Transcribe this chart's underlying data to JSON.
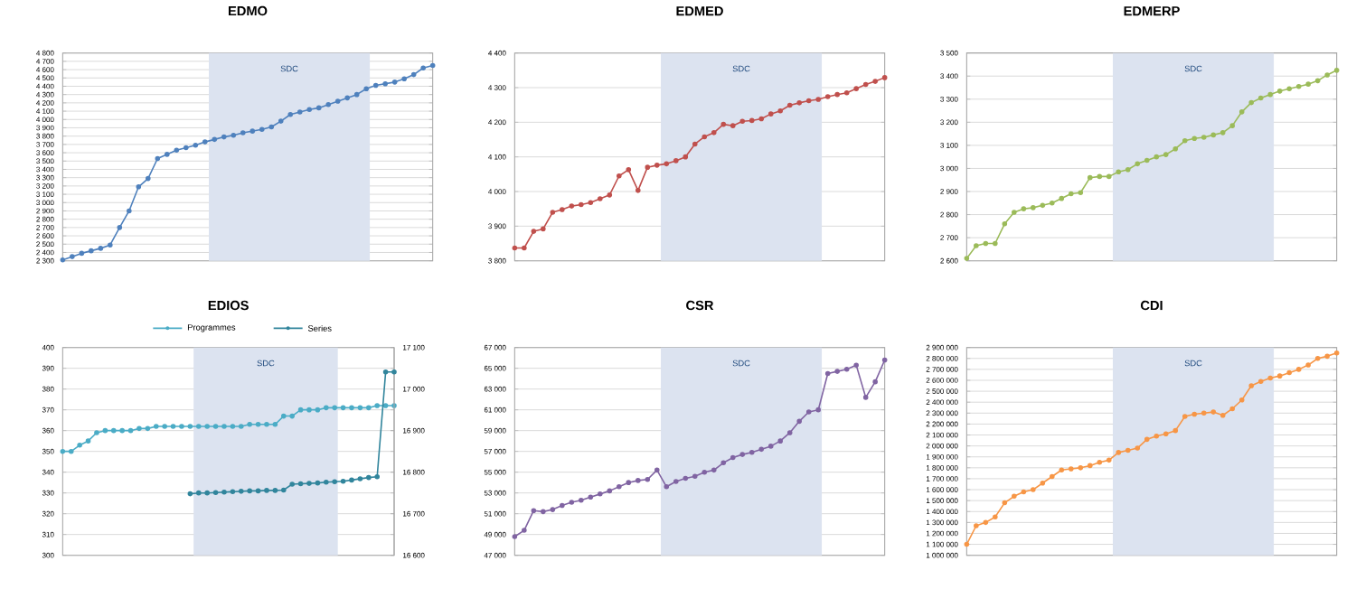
{
  "chart_data": [
    {
      "type": "line",
      "title": "EDMO",
      "marker": "circle",
      "grid": "y",
      "annotations": [
        "SDC"
      ],
      "categories": [
        null,
        null,
        null,
        null,
        null,
        null,
        null,
        null,
        null,
        null,
        null,
        null,
        null,
        null,
        null,
        null,
        null,
        null,
        null,
        null,
        null,
        null,
        null,
        null,
        null,
        null,
        null,
        null,
        null,
        null,
        null,
        null,
        null,
        null,
        null,
        null,
        null,
        null,
        null,
        null
      ],
      "series": [
        {
          "color": "#4f81bd",
          "values": [
            2310,
            2350,
            2390,
            2420,
            2450,
            2490,
            2700,
            2900,
            3190,
            3290,
            3530,
            3580,
            3630,
            3660,
            3690,
            3730,
            3760,
            3790,
            3810,
            3840,
            3860,
            3880,
            3910,
            3980,
            4060,
            4090,
            4120,
            4140,
            4180,
            4220,
            4260,
            4300,
            4370,
            4410,
            4430,
            4450,
            4490,
            4540,
            4620,
            4650
          ]
        }
      ],
      "ylim": [
        2300,
        4800
      ],
      "yticks": [
        {
          "value": 2300,
          "label": "2 300"
        },
        {
          "value": 2400,
          "label": "2 400"
        },
        {
          "value": 2500,
          "label": "2 500"
        },
        {
          "value": 2600,
          "label": "2 600"
        },
        {
          "value": 2700,
          "label": "2 700"
        },
        {
          "value": 2800,
          "label": "2 800"
        },
        {
          "value": 2900,
          "label": "2 900"
        },
        {
          "value": 3000,
          "label": "3 000"
        },
        {
          "value": 3100,
          "label": "3 100"
        },
        {
          "value": 3200,
          "label": "3 200"
        },
        {
          "value": 3300,
          "label": "3 300"
        },
        {
          "value": 3400,
          "label": "3 400"
        },
        {
          "value": 3500,
          "label": "3 500"
        },
        {
          "value": 3600,
          "label": "3 600"
        },
        {
          "value": 3700,
          "label": "3 700"
        },
        {
          "value": 3800,
          "label": "3 800"
        },
        {
          "value": 3900,
          "label": "3 900"
        },
        {
          "value": 4000,
          "label": "4 000"
        },
        {
          "value": 4100,
          "label": "4 100"
        },
        {
          "value": 4200,
          "label": "4 200"
        },
        {
          "value": 4300,
          "label": "4 300"
        },
        {
          "value": 4400,
          "label": "4 400"
        },
        {
          "value": 4500,
          "label": "4 500"
        },
        {
          "value": 4600,
          "label": "4 600"
        },
        {
          "value": 4700,
          "label": "4 700"
        },
        {
          "value": 4800,
          "label": "4 800"
        }
      ]
    },
    {
      "type": "line",
      "title": "EDMED",
      "marker": "circle",
      "grid": "y",
      "annotations": [
        "SDC"
      ],
      "categories": [
        null,
        null,
        null,
        null,
        null,
        null,
        null,
        null,
        null,
        null,
        null,
        null,
        null,
        null,
        null,
        null,
        null,
        null,
        null,
        null,
        null,
        null,
        null,
        null,
        null,
        null,
        null,
        null,
        null,
        null,
        null,
        null,
        null,
        null,
        null,
        null,
        null,
        null,
        null,
        null
      ],
      "series": [
        {
          "color": "#c0504d",
          "values": [
            3837,
            3837,
            3885,
            3892,
            3940,
            3948,
            3958,
            3962,
            3968,
            3979,
            3990,
            4045,
            4063,
            4003,
            4070,
            4076,
            4080,
            4089,
            4100,
            4137,
            4158,
            4170,
            4194,
            4190,
            4203,
            4205,
            4210,
            4224,
            4233,
            4249,
            4256,
            4262,
            4266,
            4274,
            4280,
            4285,
            4297,
            4309,
            4318,
            4329
          ]
        }
      ],
      "ylim": [
        3800,
        4400
      ],
      "yticks": [
        {
          "value": 3800,
          "label": "3 800"
        },
        {
          "value": 3900,
          "label": "3 900"
        },
        {
          "value": 4000,
          "label": "4 000"
        },
        {
          "value": 4100,
          "label": "4 100"
        },
        {
          "value": 4200,
          "label": "4 200"
        },
        {
          "value": 4300,
          "label": "4 300"
        },
        {
          "value": 4400,
          "label": "4 400"
        }
      ]
    },
    {
      "type": "line",
      "title": "EDMERP",
      "marker": "circle",
      "grid": "y",
      "annotations": [
        "SDC"
      ],
      "categories": [
        null,
        null,
        null,
        null,
        null,
        null,
        null,
        null,
        null,
        null,
        null,
        null,
        null,
        null,
        null,
        null,
        null,
        null,
        null,
        null,
        null,
        null,
        null,
        null,
        null,
        null,
        null,
        null,
        null,
        null,
        null,
        null,
        null,
        null,
        null,
        null,
        null,
        null,
        null,
        null
      ],
      "series": [
        {
          "color": "#9bbb59",
          "values": [
            2610,
            2665,
            2675,
            2675,
            2760,
            2810,
            2825,
            2830,
            2840,
            2850,
            2870,
            2890,
            2895,
            2960,
            2965,
            2965,
            2985,
            2995,
            3020,
            3035,
            3050,
            3060,
            3085,
            3120,
            3130,
            3135,
            3145,
            3155,
            3185,
            3245,
            3285,
            3305,
            3320,
            3335,
            3345,
            3355,
            3365,
            3380,
            3405,
            3425
          ]
        }
      ],
      "ylim": [
        2600,
        3500
      ],
      "yticks": [
        {
          "value": 2600,
          "label": "2 600"
        },
        {
          "value": 2700,
          "label": "2 700"
        },
        {
          "value": 2800,
          "label": "2 800"
        },
        {
          "value": 2900,
          "label": "2 900"
        },
        {
          "value": 3000,
          "label": "3 000"
        },
        {
          "value": 3100,
          "label": "3 100"
        },
        {
          "value": 3200,
          "label": "3 200"
        },
        {
          "value": 3300,
          "label": "3 300"
        },
        {
          "value": 3400,
          "label": "3 400"
        },
        {
          "value": 3500,
          "label": "3 500"
        }
      ]
    },
    {
      "type": "line",
      "title": "EDIOS",
      "marker": "circle",
      "grid": "y",
      "legend": "top right",
      "annotations": [
        "SDC"
      ],
      "categories": [
        null,
        null,
        null,
        null,
        null,
        null,
        null,
        null,
        null,
        null,
        null,
        null,
        null,
        null,
        null,
        null,
        null,
        null,
        null,
        null,
        null,
        null,
        null,
        null,
        null,
        null,
        null,
        null,
        null,
        null,
        null,
        null,
        null,
        null,
        null,
        null,
        null,
        null,
        null,
        null
      ],
      "series": [
        {
          "name": "Programmes",
          "color": "#4bacc6",
          "values": [
            350,
            350,
            353,
            355,
            359,
            360,
            360,
            360,
            360,
            361,
            361,
            362,
            362,
            362,
            362,
            362,
            362,
            362,
            362,
            362,
            362,
            362,
            363,
            363,
            363,
            363,
            367,
            367,
            370,
            370,
            370,
            371,
            371,
            371,
            371,
            371,
            371,
            372,
            372,
            372
          ]
        },
        {
          "name": "Series",
          "color": "#31859c",
          "axis": "y2",
          "values": [
            null,
            null,
            null,
            null,
            null,
            null,
            null,
            null,
            null,
            null,
            null,
            null,
            null,
            null,
            null,
            16748,
            16750,
            16750,
            16751,
            16752,
            16753,
            16754,
            16755,
            16755,
            16756,
            16756,
            16757,
            16771,
            16772,
            16773,
            16774,
            16776,
            16777,
            16778,
            16781,
            16784,
            16787,
            16789,
            17041,
            17041
          ]
        }
      ],
      "ylim": [
        300,
        400
      ],
      "yticks": [
        300,
        310,
        320,
        330,
        340,
        350,
        360,
        370,
        380,
        390,
        400
      ],
      "y2lim": [
        16600,
        17100
      ],
      "y2ticks": [
        {
          "value": 16600,
          "label": "16 600"
        },
        {
          "value": 16700,
          "label": "16 700"
        },
        {
          "value": 16800,
          "label": "16 800"
        },
        {
          "value": 16900,
          "label": "16 900"
        },
        {
          "value": 17000,
          "label": "17 000"
        },
        {
          "value": 17100,
          "label": "17 100"
        }
      ]
    },
    {
      "type": "line",
      "title": "CSR",
      "marker": "circle",
      "grid": "y",
      "annotations": [
        "SDC"
      ],
      "categories": [
        null,
        null,
        null,
        null,
        null,
        null,
        null,
        null,
        null,
        null,
        null,
        null,
        null,
        null,
        null,
        null,
        null,
        null,
        null,
        null,
        null,
        null,
        null,
        null,
        null,
        null,
        null,
        null,
        null,
        null,
        null,
        null,
        null,
        null,
        null,
        null,
        null,
        null,
        null,
        null
      ],
      "series": [
        {
          "color": "#8064a2",
          "values": [
            48800,
            49400,
            51300,
            51200,
            51400,
            51800,
            52100,
            52300,
            52600,
            52900,
            53200,
            53600,
            54000,
            54200,
            54300,
            55200,
            53600,
            54100,
            54400,
            54600,
            55000,
            55200,
            55900,
            56400,
            56700,
            56900,
            57200,
            57500,
            58000,
            58800,
            59900,
            60800,
            61000,
            64500,
            64700,
            64900,
            65300,
            62200,
            63700,
            65800
          ]
        }
      ],
      "ylim": [
        47000,
        67000
      ],
      "yticks": [
        {
          "value": 47000,
          "label": "47 000"
        },
        {
          "value": 49000,
          "label": "49 000"
        },
        {
          "value": 51000,
          "label": "51 000"
        },
        {
          "value": 53000,
          "label": "53 000"
        },
        {
          "value": 55000,
          "label": "55 000"
        },
        {
          "value": 57000,
          "label": "57 000"
        },
        {
          "value": 59000,
          "label": "59 000"
        },
        {
          "value": 61000,
          "label": "61 000"
        },
        {
          "value": 63000,
          "label": "63 000"
        },
        {
          "value": 65000,
          "label": "65 000"
        },
        {
          "value": 67000,
          "label": "67 000"
        }
      ]
    },
    {
      "type": "line",
      "title": "CDI",
      "marker": "circle",
      "grid": "y",
      "annotations": [
        "SDC"
      ],
      "categories": [
        null,
        null,
        null,
        null,
        null,
        null,
        null,
        null,
        null,
        null,
        null,
        null,
        null,
        null,
        null,
        null,
        null,
        null,
        null,
        null,
        null,
        null,
        null,
        null,
        null,
        null,
        null,
        null,
        null,
        null,
        null,
        null,
        null,
        null,
        null,
        null,
        null,
        null,
        null,
        null
      ],
      "series": [
        {
          "color": "#f79646",
          "values": [
            1100000,
            1270000,
            1300000,
            1350000,
            1480000,
            1540000,
            1580000,
            1600000,
            1660000,
            1720000,
            1780000,
            1790000,
            1800000,
            1820000,
            1850000,
            1870000,
            1940000,
            1960000,
            1980000,
            2060000,
            2090000,
            2110000,
            2140000,
            2270000,
            2290000,
            2300000,
            2310000,
            2280000,
            2340000,
            2420000,
            2550000,
            2590000,
            2620000,
            2640000,
            2670000,
            2700000,
            2740000,
            2800000,
            2820000,
            2850000
          ]
        }
      ],
      "ylim": [
        1000000,
        2900000
      ],
      "yticks": [
        {
          "value": 1000000,
          "label": "1 000 000"
        },
        {
          "value": 1100000,
          "label": "1 100 000"
        },
        {
          "value": 1200000,
          "label": "1 200 000"
        },
        {
          "value": 1300000,
          "label": "1 300 000"
        },
        {
          "value": 1400000,
          "label": "1 400 000"
        },
        {
          "value": 1500000,
          "label": "1 500 000"
        },
        {
          "value": 1600000,
          "label": "1 600 000"
        },
        {
          "value": 1700000,
          "label": "1 700 000"
        },
        {
          "value": 1800000,
          "label": "1 800 000"
        },
        {
          "value": 1900000,
          "label": "1 900 000"
        },
        {
          "value": 2000000,
          "label": "2 000 000"
        },
        {
          "value": 2100000,
          "label": "2 100 000"
        },
        {
          "value": 2200000,
          "label": "2 200 000"
        },
        {
          "value": 2300000,
          "label": "2 300 000"
        },
        {
          "value": 2400000,
          "label": "2 400 000"
        },
        {
          "value": 2500000,
          "label": "2 500 000"
        },
        {
          "value": 2600000,
          "label": "2 600 000"
        },
        {
          "value": 2700000,
          "label": "2 700 000"
        },
        {
          "value": 2800000,
          "label": "2 800 000"
        },
        {
          "value": 2900000,
          "label": "2 900 000"
        }
      ]
    }
  ]
}
